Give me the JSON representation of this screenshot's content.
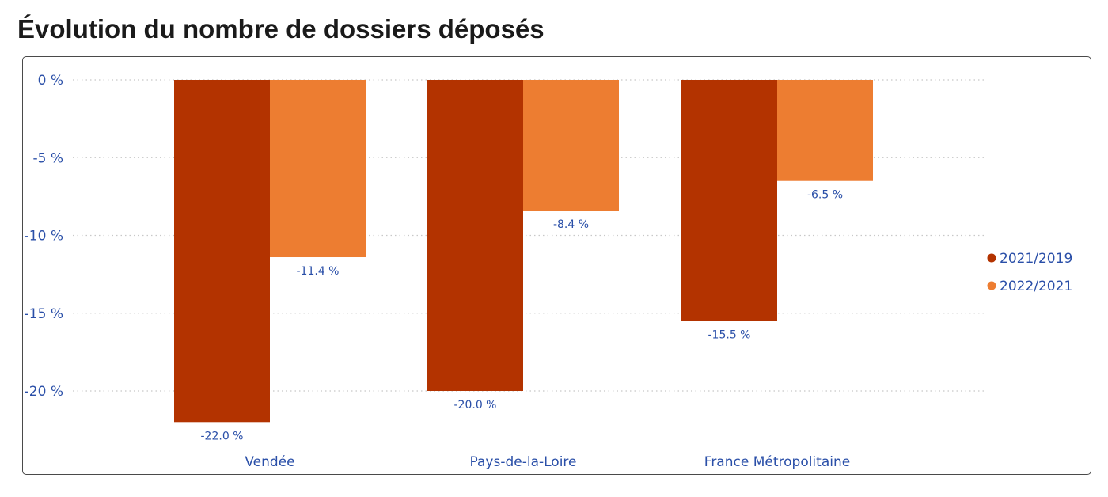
{
  "title": "Évolution du nombre de dossiers déposés",
  "chart_data": {
    "type": "bar",
    "title": "Évolution du nombre de dossiers déposés",
    "xlabel": "",
    "ylabel": "",
    "categories": [
      "Vendée",
      "Pays-de-la-Loire",
      "France Métropolitaine"
    ],
    "series": [
      {
        "name": "2021/2019",
        "color": "#b33300",
        "values": [
          -22.0,
          -20.0,
          -15.5
        ],
        "labels": [
          "-22.0 %",
          "-20.0 %",
          "-15.5 %"
        ]
      },
      {
        "name": "2022/2021",
        "color": "#ed7d31",
        "values": [
          -11.4,
          -8.4,
          -6.5
        ],
        "labels": [
          "-11.4 %",
          "-8.4 %",
          "-6.5 %"
        ]
      }
    ],
    "yticks": [
      0,
      -5,
      -10,
      -15,
      -20
    ],
    "ytick_labels": [
      "0 %",
      "-5 %",
      "-10 %",
      "-15 %",
      "-20 %"
    ],
    "ylim": [
      -22.0,
      0
    ],
    "grid": true,
    "legend_position": "right"
  }
}
